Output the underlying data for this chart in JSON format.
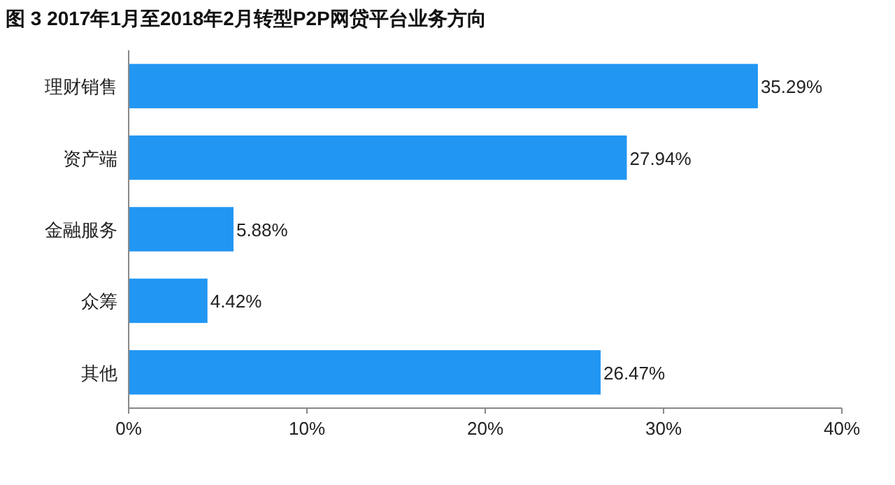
{
  "chart_data": {
    "type": "bar",
    "orientation": "horizontal",
    "title": "图 3 2017年1月至2018年2月转型P2P网贷平台业务方向",
    "categories": [
      "理财销售",
      "资产端",
      "金融服务",
      "众筹",
      "其他"
    ],
    "values": [
      35.29,
      27.94,
      5.88,
      4.42,
      26.47
    ],
    "value_labels": [
      "35.29%",
      "27.94%",
      "5.88%",
      "4.42%",
      "26.47%"
    ],
    "color": "#2196f3",
    "xlim": [
      0,
      40
    ],
    "xticks": [
      {
        "value": 0,
        "label": "0%"
      },
      {
        "value": 10,
        "label": "10%"
      },
      {
        "value": 20,
        "label": "20%"
      },
      {
        "value": 30,
        "label": "30%"
      },
      {
        "value": 40,
        "label": "40%"
      }
    ],
    "grid": false
  }
}
